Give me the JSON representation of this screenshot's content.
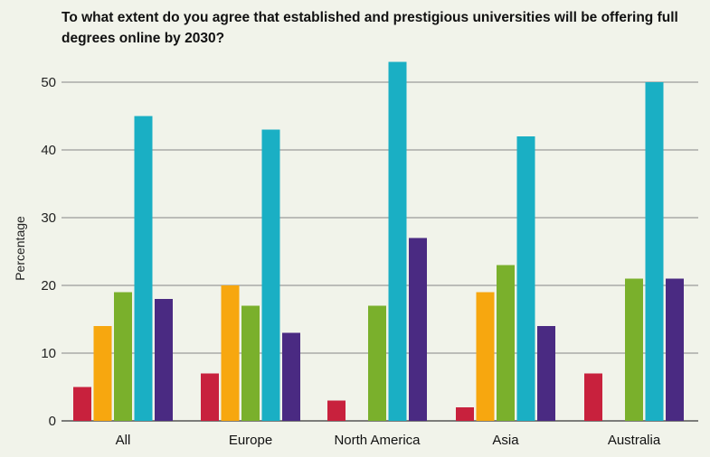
{
  "chart_data": {
    "type": "bar",
    "title": "To what extent do you agree that established and prestigious universities will be offering full degrees online by 2030?",
    "xlabel": "",
    "ylabel": "Percentage",
    "ylim": [
      0,
      55
    ],
    "yticks": [
      0,
      10,
      20,
      30,
      40,
      50
    ],
    "grid": true,
    "legend": "none",
    "categories": [
      "All",
      "Europe",
      "North America",
      "Asia",
      "Australia"
    ],
    "series": [
      {
        "name": "series-1",
        "color": "#c8213d",
        "values": [
          5,
          7,
          3,
          2,
          7
        ]
      },
      {
        "name": "series-2",
        "color": "#f7a70f",
        "values": [
          14,
          20,
          0,
          19,
          0
        ]
      },
      {
        "name": "series-3",
        "color": "#7ab02c",
        "values": [
          19,
          17,
          17,
          23,
          21
        ]
      },
      {
        "name": "series-4",
        "color": "#1aafc4",
        "values": [
          45,
          43,
          53,
          42,
          50
        ]
      },
      {
        "name": "series-5",
        "color": "#4a2a82",
        "values": [
          18,
          13,
          27,
          14,
          21
        ]
      }
    ]
  }
}
